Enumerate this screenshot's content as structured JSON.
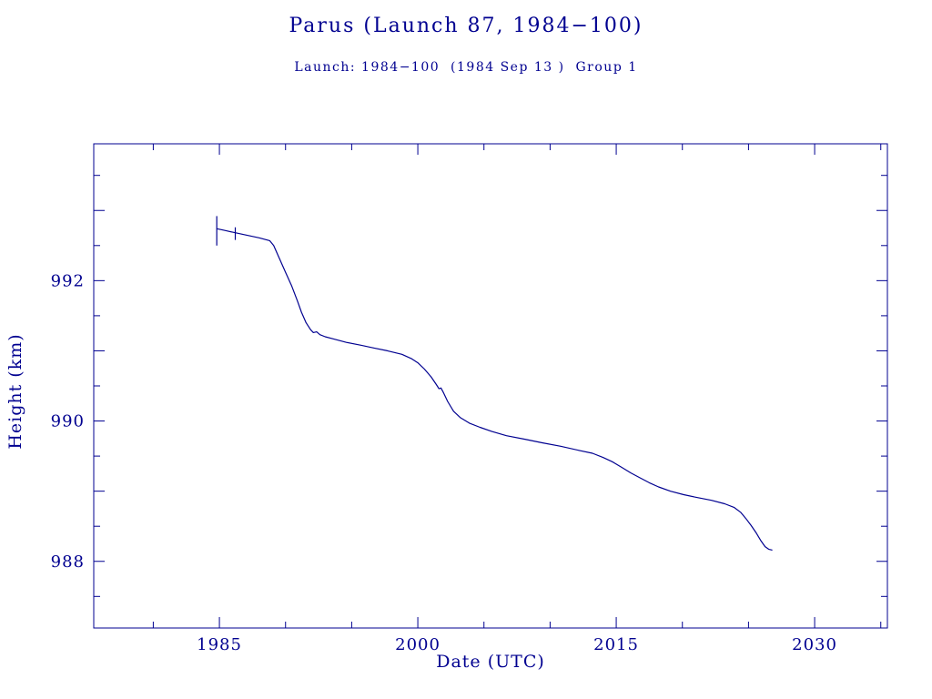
{
  "chart_data": {
    "type": "line",
    "title": "Parus (Launch 87, 1984−100)",
    "subtitle": "Launch: 1984−100  (1984 Sep 13 )  Group 1",
    "xlabel": "Date (UTC)",
    "ylabel": "Height (km)",
    "xlim": [
      1975.5,
      2035.5
    ],
    "ylim": [
      987.05,
      993.95
    ],
    "xticks": [
      1985,
      2000,
      2015,
      2030
    ],
    "yticks": [
      988,
      990,
      992
    ],
    "x_minor_tick_step": 5,
    "y_minor_tick_step": 0.5,
    "grid": false,
    "legend": false,
    "line_color": "#000090",
    "background_color": "#ffffff",
    "series": [
      {
        "name": "orbital-height-km",
        "points": [
          [
            1984.8,
            992.74
          ],
          [
            1985.3,
            992.72
          ],
          [
            1986.0,
            992.69
          ],
          [
            1987.0,
            992.65
          ],
          [
            1988.0,
            992.61
          ],
          [
            1988.8,
            992.57
          ],
          [
            1989.1,
            992.5
          ],
          [
            1989.5,
            992.33
          ],
          [
            1990.0,
            992.12
          ],
          [
            1990.45,
            991.93
          ],
          [
            1990.9,
            991.71
          ],
          [
            1991.2,
            991.55
          ],
          [
            1991.55,
            991.4
          ],
          [
            1991.9,
            991.3
          ],
          [
            1992.1,
            991.26
          ],
          [
            1992.35,
            991.27
          ],
          [
            1992.6,
            991.23
          ],
          [
            1993.0,
            991.2
          ],
          [
            1993.6,
            991.17
          ],
          [
            1994.6,
            991.12
          ],
          [
            1995.7,
            991.08
          ],
          [
            1996.7,
            991.04
          ],
          [
            1997.7,
            991.0
          ],
          [
            1998.8,
            990.95
          ],
          [
            1999.5,
            990.89
          ],
          [
            2000.0,
            990.83
          ],
          [
            2000.5,
            990.74
          ],
          [
            2001.0,
            990.63
          ],
          [
            2001.4,
            990.52
          ],
          [
            2001.6,
            990.46
          ],
          [
            2001.75,
            990.47
          ],
          [
            2001.95,
            990.4
          ],
          [
            2002.25,
            990.28
          ],
          [
            2002.7,
            990.14
          ],
          [
            2003.2,
            990.05
          ],
          [
            2003.9,
            989.97
          ],
          [
            2004.7,
            989.91
          ],
          [
            2005.6,
            989.85
          ],
          [
            2006.7,
            989.79
          ],
          [
            2008.1,
            989.74
          ],
          [
            2009.4,
            989.69
          ],
          [
            2010.8,
            989.64
          ],
          [
            2012.2,
            989.58
          ],
          [
            2013.2,
            989.54
          ],
          [
            2014.0,
            989.48
          ],
          [
            2014.7,
            989.42
          ],
          [
            2015.4,
            989.34
          ],
          [
            2016.1,
            989.26
          ],
          [
            2016.8,
            989.19
          ],
          [
            2017.5,
            989.12
          ],
          [
            2018.2,
            989.06
          ],
          [
            2019.1,
            989.0
          ],
          [
            2020.1,
            988.95
          ],
          [
            2021.1,
            988.91
          ],
          [
            2022.2,
            988.87
          ],
          [
            2023.2,
            988.82
          ],
          [
            2023.9,
            988.77
          ],
          [
            2024.4,
            988.7
          ],
          [
            2024.8,
            988.61
          ],
          [
            2025.2,
            988.51
          ],
          [
            2025.6,
            988.4
          ],
          [
            2025.95,
            988.29
          ],
          [
            2026.25,
            988.21
          ],
          [
            2026.55,
            988.17
          ],
          [
            2026.8,
            988.16
          ]
        ]
      }
    ],
    "error_bars": [
      {
        "x": 1984.8,
        "y_low": 992.5,
        "y_high": 992.92
      },
      {
        "x": 1986.2,
        "y_low": 992.58,
        "y_high": 992.76
      }
    ]
  }
}
